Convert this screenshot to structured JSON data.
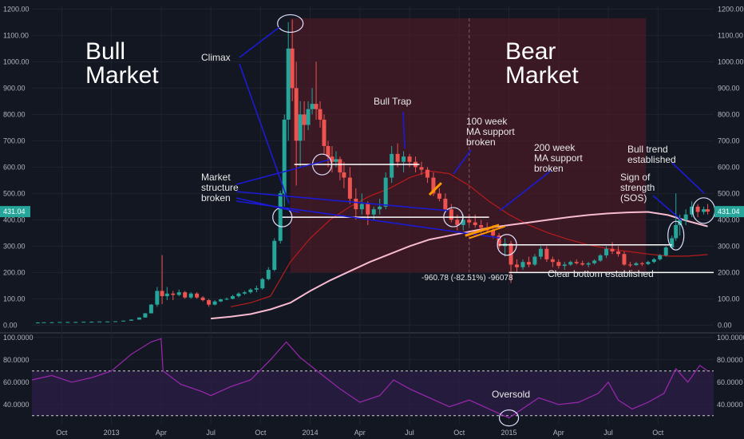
{
  "chart_data": [
    {
      "type": "candlestick",
      "price_axis_labels": [
        "1200.00",
        "1100.00",
        "1000.00",
        "900.00",
        "800.00",
        "700.00",
        "600.00",
        "500.00",
        "400.00",
        "300.00",
        "200.00",
        "100.00",
        "0.00"
      ],
      "price_axis_values": [
        1200,
        1100,
        1000,
        900,
        800,
        700,
        600,
        500,
        400,
        300,
        200,
        100,
        0
      ],
      "ylim": [
        -20,
        1210
      ],
      "current_price_label": "431.04",
      "current_price": 431.04,
      "x_tick_labels": [
        "Oct",
        "2013",
        "Apr",
        "Jul",
        "Oct",
        "2014",
        "Apr",
        "Jul",
        "Oct",
        "2015",
        "Apr",
        "Jul",
        "Oct"
      ],
      "x_tick_values": [
        2012.75,
        2013.0,
        2013.25,
        2013.5,
        2013.75,
        2014.0,
        2014.25,
        2014.5,
        2014.75,
        2015.0,
        2015.25,
        2015.5,
        2015.75
      ],
      "xlim": [
        2012.6,
        2016.03
      ],
      "candles": [
        [
          2012.63,
          10,
          11,
          9,
          10
        ],
        [
          2012.66,
          10,
          11,
          10,
          11
        ],
        [
          2012.7,
          11,
          12,
          10,
          11
        ],
        [
          2012.74,
          11,
          12,
          11,
          12
        ],
        [
          2012.78,
          12,
          13,
          11,
          12
        ],
        [
          2012.82,
          12,
          13,
          11,
          12
        ],
        [
          2012.86,
          12,
          13,
          12,
          13
        ],
        [
          2012.9,
          13,
          14,
          12,
          13
        ],
        [
          2012.94,
          13,
          14,
          13,
          14
        ],
        [
          2012.98,
          13,
          14,
          13,
          14
        ],
        [
          2013.02,
          14,
          15,
          13,
          15
        ],
        [
          2013.06,
          15,
          18,
          15,
          17
        ],
        [
          2013.1,
          17,
          22,
          17,
          21
        ],
        [
          2013.14,
          21,
          30,
          21,
          29
        ],
        [
          2013.17,
          29,
          46,
          29,
          45
        ],
        [
          2013.2,
          45,
          80,
          45,
          78
        ],
        [
          2013.23,
          78,
          145,
          70,
          130
        ],
        [
          2013.255,
          130,
          266,
          80,
          110
        ],
        [
          2013.28,
          110,
          145,
          95,
          120
        ],
        [
          2013.31,
          120,
          130,
          95,
          115
        ],
        [
          2013.34,
          115,
          135,
          110,
          125
        ],
        [
          2013.37,
          125,
          130,
          100,
          105
        ],
        [
          2013.4,
          105,
          125,
          100,
          120
        ],
        [
          2013.43,
          120,
          125,
          100,
          105
        ],
        [
          2013.46,
          105,
          110,
          90,
          95
        ],
        [
          2013.49,
          95,
          100,
          70,
          78
        ],
        [
          2013.52,
          78,
          95,
          75,
          90
        ],
        [
          2013.55,
          90,
          100,
          88,
          98
        ],
        [
          2013.58,
          98,
          105,
          95,
          100
        ],
        [
          2013.61,
          100,
          115,
          98,
          110
        ],
        [
          2013.64,
          110,
          125,
          105,
          120
        ],
        [
          2013.67,
          120,
          130,
          115,
          125
        ],
        [
          2013.7,
          125,
          140,
          120,
          135
        ],
        [
          2013.73,
          135,
          150,
          125,
          140
        ],
        [
          2013.76,
          140,
          180,
          135,
          175
        ],
        [
          2013.79,
          175,
          220,
          170,
          210
        ],
        [
          2013.82,
          210,
          330,
          205,
          320
        ],
        [
          2013.85,
          320,
          510,
          310,
          500
        ],
        [
          2013.87,
          500,
          800,
          450,
          780
        ],
        [
          2013.89,
          780,
          1150,
          700,
          1050
        ],
        [
          2013.91,
          1050,
          1160,
          850,
          900
        ],
        [
          2013.93,
          900,
          1000,
          530,
          700
        ],
        [
          2013.95,
          700,
          850,
          600,
          800
        ],
        [
          2013.97,
          800,
          850,
          700,
          760
        ],
        [
          2013.99,
          760,
          850,
          740,
          820
        ],
        [
          2014.01,
          820,
          900,
          800,
          840
        ],
        [
          2014.03,
          840,
          1000,
          780,
          820
        ],
        [
          2014.05,
          820,
          850,
          750,
          780
        ],
        [
          2014.07,
          780,
          800,
          650,
          680
        ],
        [
          2014.09,
          680,
          700,
          600,
          640
        ],
        [
          2014.11,
          640,
          680,
          580,
          620
        ],
        [
          2014.13,
          620,
          660,
          600,
          630
        ],
        [
          2014.15,
          630,
          640,
          550,
          580
        ],
        [
          2014.17,
          580,
          620,
          520,
          560
        ],
        [
          2014.2,
          560,
          600,
          460,
          480
        ],
        [
          2014.23,
          480,
          520,
          400,
          440
        ],
        [
          2014.26,
          440,
          500,
          420,
          460
        ],
        [
          2014.29,
          460,
          470,
          380,
          420
        ],
        [
          2014.32,
          420,
          450,
          400,
          440
        ],
        [
          2014.35,
          440,
          480,
          420,
          450
        ],
        [
          2014.38,
          450,
          580,
          440,
          560
        ],
        [
          2014.41,
          560,
          680,
          540,
          650
        ],
        [
          2014.44,
          650,
          690,
          600,
          620
        ],
        [
          2014.47,
          620,
          660,
          580,
          640
        ],
        [
          2014.5,
          640,
          650,
          600,
          620
        ],
        [
          2014.53,
          620,
          640,
          580,
          600
        ],
        [
          2014.56,
          600,
          620,
          570,
          590
        ],
        [
          2014.59,
          590,
          600,
          540,
          560
        ],
        [
          2014.62,
          560,
          580,
          490,
          500
        ],
        [
          2014.65,
          500,
          520,
          470,
          480
        ],
        [
          2014.68,
          480,
          500,
          430,
          440
        ],
        [
          2014.71,
          440,
          460,
          390,
          400
        ],
        [
          2014.74,
          400,
          420,
          360,
          380
        ],
        [
          2014.77,
          380,
          420,
          360,
          400
        ],
        [
          2014.8,
          400,
          420,
          380,
          390
        ],
        [
          2014.83,
          390,
          420,
          370,
          380
        ],
        [
          2014.86,
          380,
          400,
          350,
          370
        ],
        [
          2014.89,
          370,
          390,
          350,
          360
        ],
        [
          2014.92,
          360,
          380,
          330,
          340
        ],
        [
          2014.95,
          340,
          350,
          290,
          300
        ],
        [
          2014.98,
          300,
          330,
          260,
          310
        ],
        [
          2015.01,
          310,
          320,
          160,
          230
        ],
        [
          2015.04,
          230,
          250,
          200,
          220
        ],
        [
          2015.07,
          220,
          250,
          210,
          240
        ],
        [
          2015.1,
          240,
          260,
          220,
          230
        ],
        [
          2015.13,
          230,
          270,
          225,
          260
        ],
        [
          2015.16,
          260,
          300,
          250,
          290
        ],
        [
          2015.19,
          290,
          300,
          240,
          250
        ],
        [
          2015.22,
          250,
          260,
          220,
          240
        ],
        [
          2015.25,
          240,
          250,
          215,
          225
        ],
        [
          2015.28,
          225,
          240,
          210,
          230
        ],
        [
          2015.31,
          230,
          245,
          225,
          240
        ],
        [
          2015.34,
          240,
          250,
          230,
          235
        ],
        [
          2015.37,
          235,
          245,
          225,
          230
        ],
        [
          2015.4,
          230,
          240,
          220,
          235
        ],
        [
          2015.43,
          235,
          250,
          230,
          245
        ],
        [
          2015.46,
          245,
          270,
          240,
          265
        ],
        [
          2015.49,
          265,
          300,
          255,
          290
        ],
        [
          2015.52,
          290,
          315,
          270,
          280
        ],
        [
          2015.55,
          280,
          300,
          260,
          270
        ],
        [
          2015.58,
          270,
          280,
          225,
          230
        ],
        [
          2015.61,
          230,
          240,
          220,
          228
        ],
        [
          2015.64,
          228,
          240,
          225,
          235
        ],
        [
          2015.67,
          235,
          240,
          225,
          232
        ],
        [
          2015.7,
          232,
          245,
          228,
          240
        ],
        [
          2015.73,
          240,
          255,
          235,
          250
        ],
        [
          2015.76,
          250,
          270,
          245,
          265
        ],
        [
          2015.79,
          265,
          300,
          260,
          295
        ],
        [
          2015.82,
          295,
          340,
          290,
          330
        ],
        [
          2015.84,
          330,
          500,
          320,
          380
        ],
        [
          2015.86,
          380,
          420,
          340,
          400
        ],
        [
          2015.89,
          400,
          440,
          380,
          420
        ],
        [
          2015.92,
          420,
          470,
          410,
          450
        ],
        [
          2015.95,
          450,
          460,
          410,
          430
        ],
        [
          2015.98,
          430,
          450,
          420,
          440
        ],
        [
          2016.0,
          440,
          460,
          420,
          431
        ]
      ],
      "ma_100_week": [
        [
          2013.6,
          70
        ],
        [
          2013.7,
          85
        ],
        [
          2013.8,
          110
        ],
        [
          2013.9,
          240
        ],
        [
          2014.0,
          330
        ],
        [
          2014.1,
          400
        ],
        [
          2014.2,
          450
        ],
        [
          2014.3,
          490
        ],
        [
          2014.4,
          520
        ],
        [
          2014.5,
          560
        ],
        [
          2014.6,
          585
        ],
        [
          2014.7,
          575
        ],
        [
          2014.8,
          530
        ],
        [
          2014.9,
          470
        ],
        [
          2015.0,
          420
        ],
        [
          2015.1,
          380
        ],
        [
          2015.2,
          350
        ],
        [
          2015.3,
          325
        ],
        [
          2015.4,
          305
        ],
        [
          2015.5,
          290
        ],
        [
          2015.6,
          280
        ],
        [
          2015.7,
          270
        ],
        [
          2015.8,
          262
        ],
        [
          2015.9,
          262
        ],
        [
          2016.0,
          268
        ]
      ],
      "ma_200_week": [
        [
          2013.5,
          25
        ],
        [
          2013.6,
          32
        ],
        [
          2013.7,
          42
        ],
        [
          2013.8,
          60
        ],
        [
          2013.9,
          85
        ],
        [
          2014.0,
          130
        ],
        [
          2014.1,
          170
        ],
        [
          2014.2,
          205
        ],
        [
          2014.3,
          240
        ],
        [
          2014.4,
          270
        ],
        [
          2014.5,
          300
        ],
        [
          2014.6,
          325
        ],
        [
          2014.7,
          340
        ],
        [
          2014.8,
          355
        ],
        [
          2014.9,
          370
        ],
        [
          2015.0,
          380
        ],
        [
          2015.1,
          390
        ],
        [
          2015.2,
          400
        ],
        [
          2015.3,
          410
        ],
        [
          2015.4,
          418
        ],
        [
          2015.5,
          424
        ],
        [
          2015.6,
          428
        ],
        [
          2015.7,
          430
        ],
        [
          2015.8,
          418
        ],
        [
          2015.9,
          395
        ],
        [
          2016.0,
          375
        ]
      ],
      "annotations": {
        "bull_market": [
          "Bull",
          "Market"
        ],
        "bear_market": [
          "Bear",
          "Market"
        ],
        "climax": "Climax",
        "bull_trap": "Bull Trap",
        "ma100": [
          "100 week",
          "MA support",
          "broken"
        ],
        "ma200": [
          "200 week",
          "MA support",
          "broken"
        ],
        "structure": [
          "Market",
          "structure",
          "broken"
        ],
        "measure": "-960.78 (-82.51%) -96078",
        "bottom": "Clear bottom established",
        "sos": [
          "Sign of",
          "strength",
          "(SOS)"
        ],
        "bull_trend": [
          "Bull trend",
          "established"
        ]
      },
      "levels": {
        "structure_1": 610,
        "structure_2": 410,
        "breakdown": 305,
        "bottom": 200
      },
      "colors": {
        "up": "#26a69a",
        "down": "#ef5350",
        "ma100": "#b71c1c",
        "ma200": "#f8bbd0",
        "bear_zone": "#5b1a26",
        "annotation_line": "#1b1bd6",
        "background": "#131722"
      }
    },
    {
      "type": "line",
      "indicator": "RSI",
      "axis_labels": [
        "100.0000",
        "80.0000",
        "60.0000",
        "40.0000"
      ],
      "axis_values": [
        100,
        80,
        60,
        40
      ],
      "ylim": [
        22,
        102
      ],
      "upper_band": 70,
      "lower_band": 30,
      "annotation": "Oversold",
      "values": [
        [
          2012.6,
          62
        ],
        [
          2012.7,
          66
        ],
        [
          2012.8,
          60
        ],
        [
          2012.9,
          64
        ],
        [
          2013.0,
          70
        ],
        [
          2013.1,
          85
        ],
        [
          2013.2,
          96
        ],
        [
          2013.25,
          99
        ],
        [
          2013.26,
          70
        ],
        [
          2013.35,
          58
        ],
        [
          2013.45,
          52
        ],
        [
          2013.5,
          48
        ],
        [
          2013.6,
          56
        ],
        [
          2013.7,
          62
        ],
        [
          2013.8,
          80
        ],
        [
          2013.88,
          96
        ],
        [
          2013.95,
          82
        ],
        [
          2014.05,
          68
        ],
        [
          2014.15,
          54
        ],
        [
          2014.25,
          42
        ],
        [
          2014.35,
          48
        ],
        [
          2014.42,
          62
        ],
        [
          2014.5,
          54
        ],
        [
          2014.6,
          46
        ],
        [
          2014.7,
          38
        ],
        [
          2014.8,
          44
        ],
        [
          2014.9,
          36
        ],
        [
          2015.0,
          28
        ],
        [
          2015.05,
          34
        ],
        [
          2015.15,
          46
        ],
        [
          2015.25,
          40
        ],
        [
          2015.35,
          42
        ],
        [
          2015.45,
          50
        ],
        [
          2015.5,
          60
        ],
        [
          2015.55,
          44
        ],
        [
          2015.62,
          36
        ],
        [
          2015.7,
          42
        ],
        [
          2015.78,
          50
        ],
        [
          2015.84,
          72
        ],
        [
          2015.9,
          60
        ],
        [
          2015.96,
          75
        ],
        [
          2016.0,
          70
        ]
      ],
      "colors": {
        "line": "#9c27b0",
        "band_fill": "#2a1e45",
        "band_line": "#cfcfcf"
      }
    }
  ]
}
